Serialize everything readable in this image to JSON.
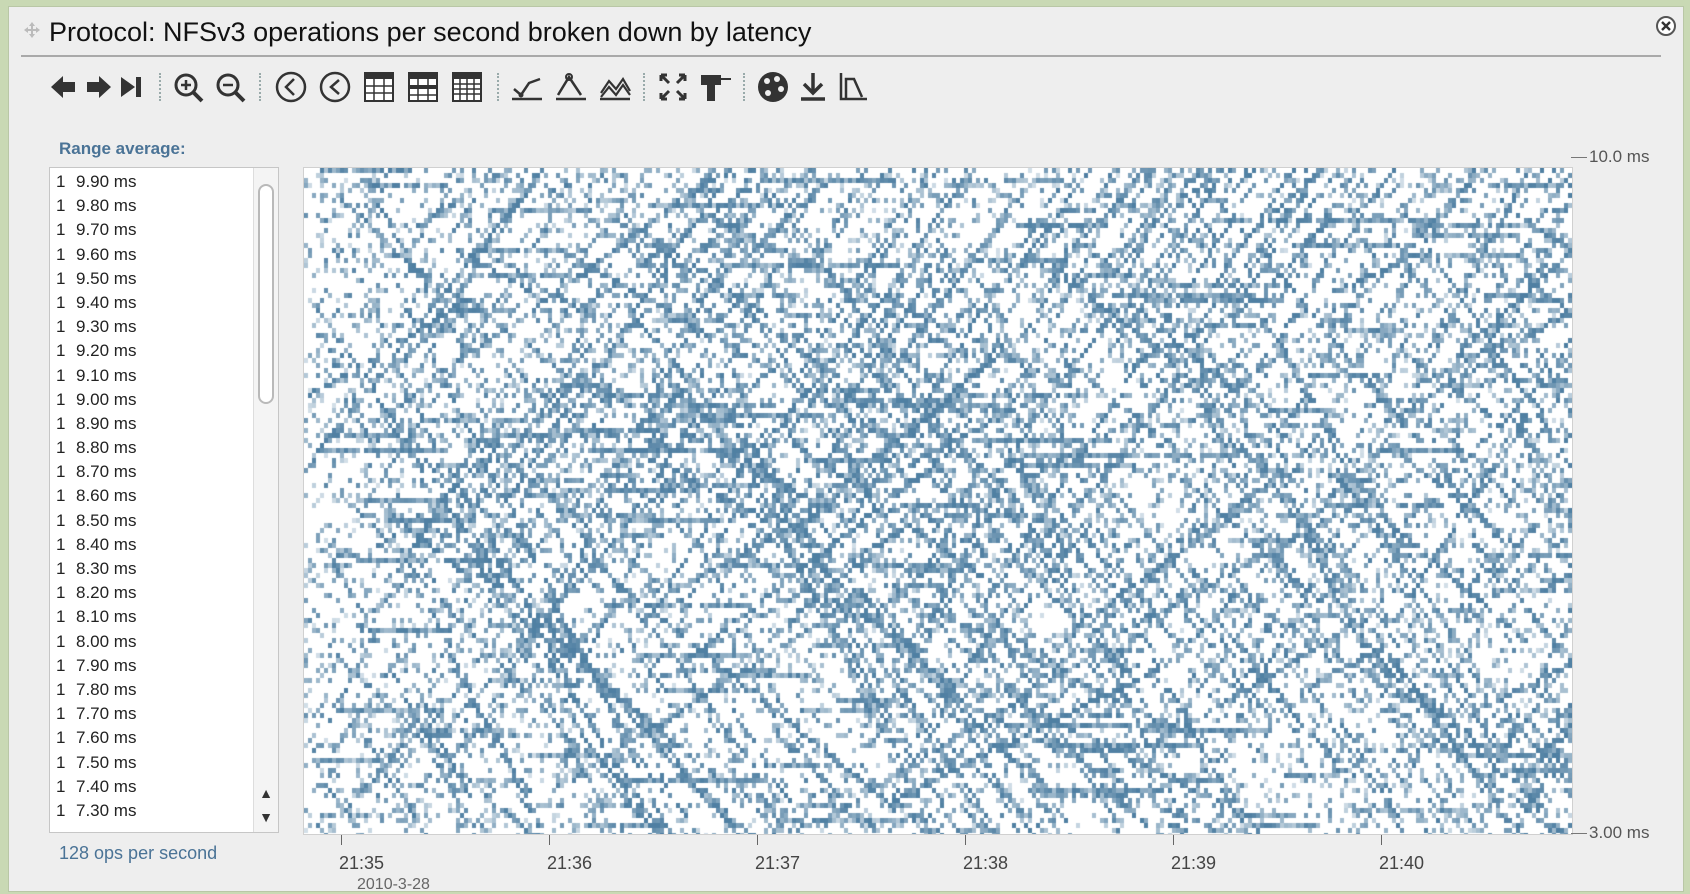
{
  "window": {
    "title": "Protocol: NFSv3 operations per second broken down by latency"
  },
  "toolbar": {
    "buttons": [
      {
        "name": "back-icon"
      },
      {
        "name": "forward-icon"
      },
      {
        "name": "skip-to-end-icon"
      },
      {
        "name": "zoom-in-icon"
      },
      {
        "name": "zoom-out-icon"
      },
      {
        "name": "time-back-icon"
      },
      {
        "name": "time-back-alt-icon"
      },
      {
        "name": "table-icon"
      },
      {
        "name": "table-alt-icon"
      },
      {
        "name": "table-grid-icon"
      },
      {
        "name": "line-chart-icon"
      },
      {
        "name": "peak-chart-icon"
      },
      {
        "name": "mountain-chart-icon"
      },
      {
        "name": "expand-icon"
      },
      {
        "name": "pin-icon"
      },
      {
        "name": "palette-icon"
      },
      {
        "name": "download-icon"
      },
      {
        "name": "chart-export-icon"
      }
    ]
  },
  "sidebar": {
    "range_label": "Range average:",
    "ops_label": "128 ops per second",
    "items": [
      {
        "count": "1",
        "label": "9.90 ms"
      },
      {
        "count": "1",
        "label": "9.80 ms"
      },
      {
        "count": "1",
        "label": "9.70 ms"
      },
      {
        "count": "1",
        "label": "9.60 ms"
      },
      {
        "count": "1",
        "label": "9.50 ms"
      },
      {
        "count": "1",
        "label": "9.40 ms"
      },
      {
        "count": "1",
        "label": "9.30 ms"
      },
      {
        "count": "1",
        "label": "9.20 ms"
      },
      {
        "count": "1",
        "label": "9.10 ms"
      },
      {
        "count": "1",
        "label": "9.00 ms"
      },
      {
        "count": "1",
        "label": "8.90 ms"
      },
      {
        "count": "1",
        "label": "8.80 ms"
      },
      {
        "count": "1",
        "label": "8.70 ms"
      },
      {
        "count": "1",
        "label": "8.60 ms"
      },
      {
        "count": "1",
        "label": "8.50 ms"
      },
      {
        "count": "1",
        "label": "8.40 ms"
      },
      {
        "count": "1",
        "label": "8.30 ms"
      },
      {
        "count": "1",
        "label": "8.20 ms"
      },
      {
        "count": "1",
        "label": "8.10 ms"
      },
      {
        "count": "1",
        "label": "8.00 ms"
      },
      {
        "count": "1",
        "label": "7.90 ms"
      },
      {
        "count": "1",
        "label": "7.80 ms"
      },
      {
        "count": "1",
        "label": "7.70 ms"
      },
      {
        "count": "1",
        "label": "7.60 ms"
      },
      {
        "count": "1",
        "label": "7.50 ms"
      },
      {
        "count": "1",
        "label": "7.40 ms"
      },
      {
        "count": "1",
        "label": "7.30 ms"
      }
    ]
  },
  "chart": {
    "y_max_label": "10.0 ms",
    "y_min_label": "3.00 ms",
    "x_labels": [
      "21:35",
      "21:36",
      "21:37",
      "21:38",
      "21:39",
      "21:40"
    ],
    "date_label": "2010-3-28",
    "cell_color": "#4f7fa2"
  },
  "chart_data": {
    "type": "heatmap",
    "title": "Protocol: NFSv3 operations per second broken down by latency",
    "x": [
      "21:35",
      "21:36",
      "21:37",
      "21:38",
      "21:39",
      "21:40"
    ],
    "ylim": [
      3.0,
      10.0
    ],
    "yunit": "ms",
    "legend": "none",
    "grid": false
  }
}
